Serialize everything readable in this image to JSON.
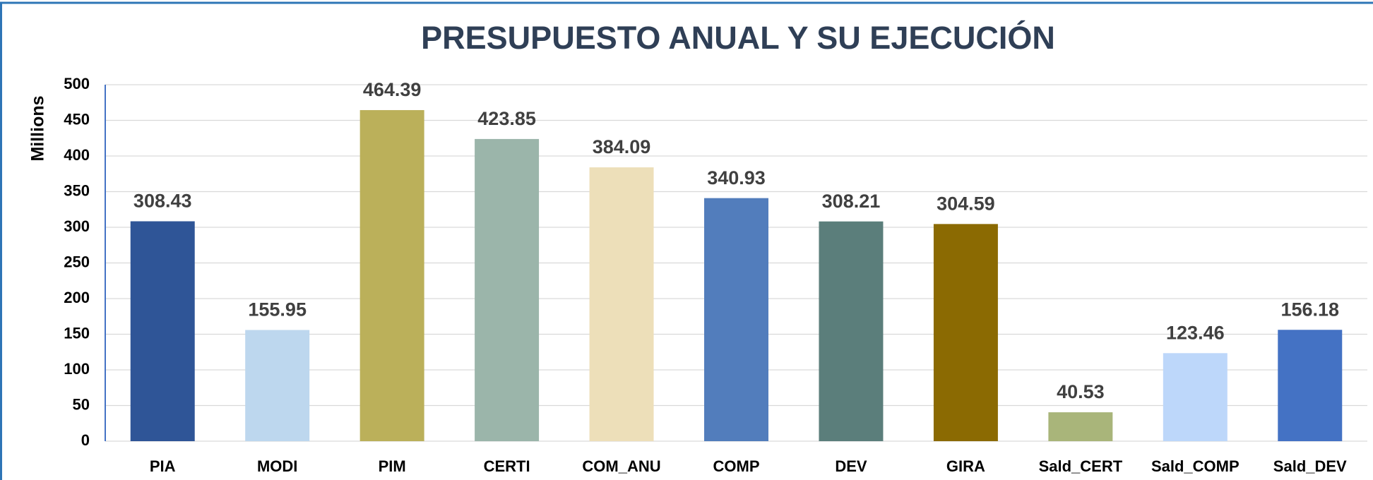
{
  "chart_data": {
    "type": "bar",
    "title": "PRESUPUESTO ANUAL Y SU EJECUCIÓN",
    "y_label": "Millions",
    "categories": [
      "PIA",
      "MODI",
      "PIM",
      "CERTI",
      "COM_ANU",
      "COMP",
      "DEV",
      "GIRA",
      "Sald_CERT",
      "Sald_COMP",
      "Sald_DEV"
    ],
    "values": [
      308.43,
      155.95,
      464.39,
      423.85,
      384.09,
      340.93,
      308.21,
      304.59,
      40.53,
      123.46,
      156.18
    ],
    "colors": [
      "#2f5597",
      "#bdd7ee",
      "#bbb05a",
      "#9bb5aa",
      "#eddfb9",
      "#527dbc",
      "#5b7e7b",
      "#8b6a02",
      "#a9b57a",
      "#bdd7fa",
      "#4472c4"
    ],
    "ylim": [
      0,
      500
    ],
    "yticks": [
      0,
      50,
      100,
      150,
      200,
      250,
      300,
      350,
      400,
      450,
      500
    ],
    "grid": true
  }
}
